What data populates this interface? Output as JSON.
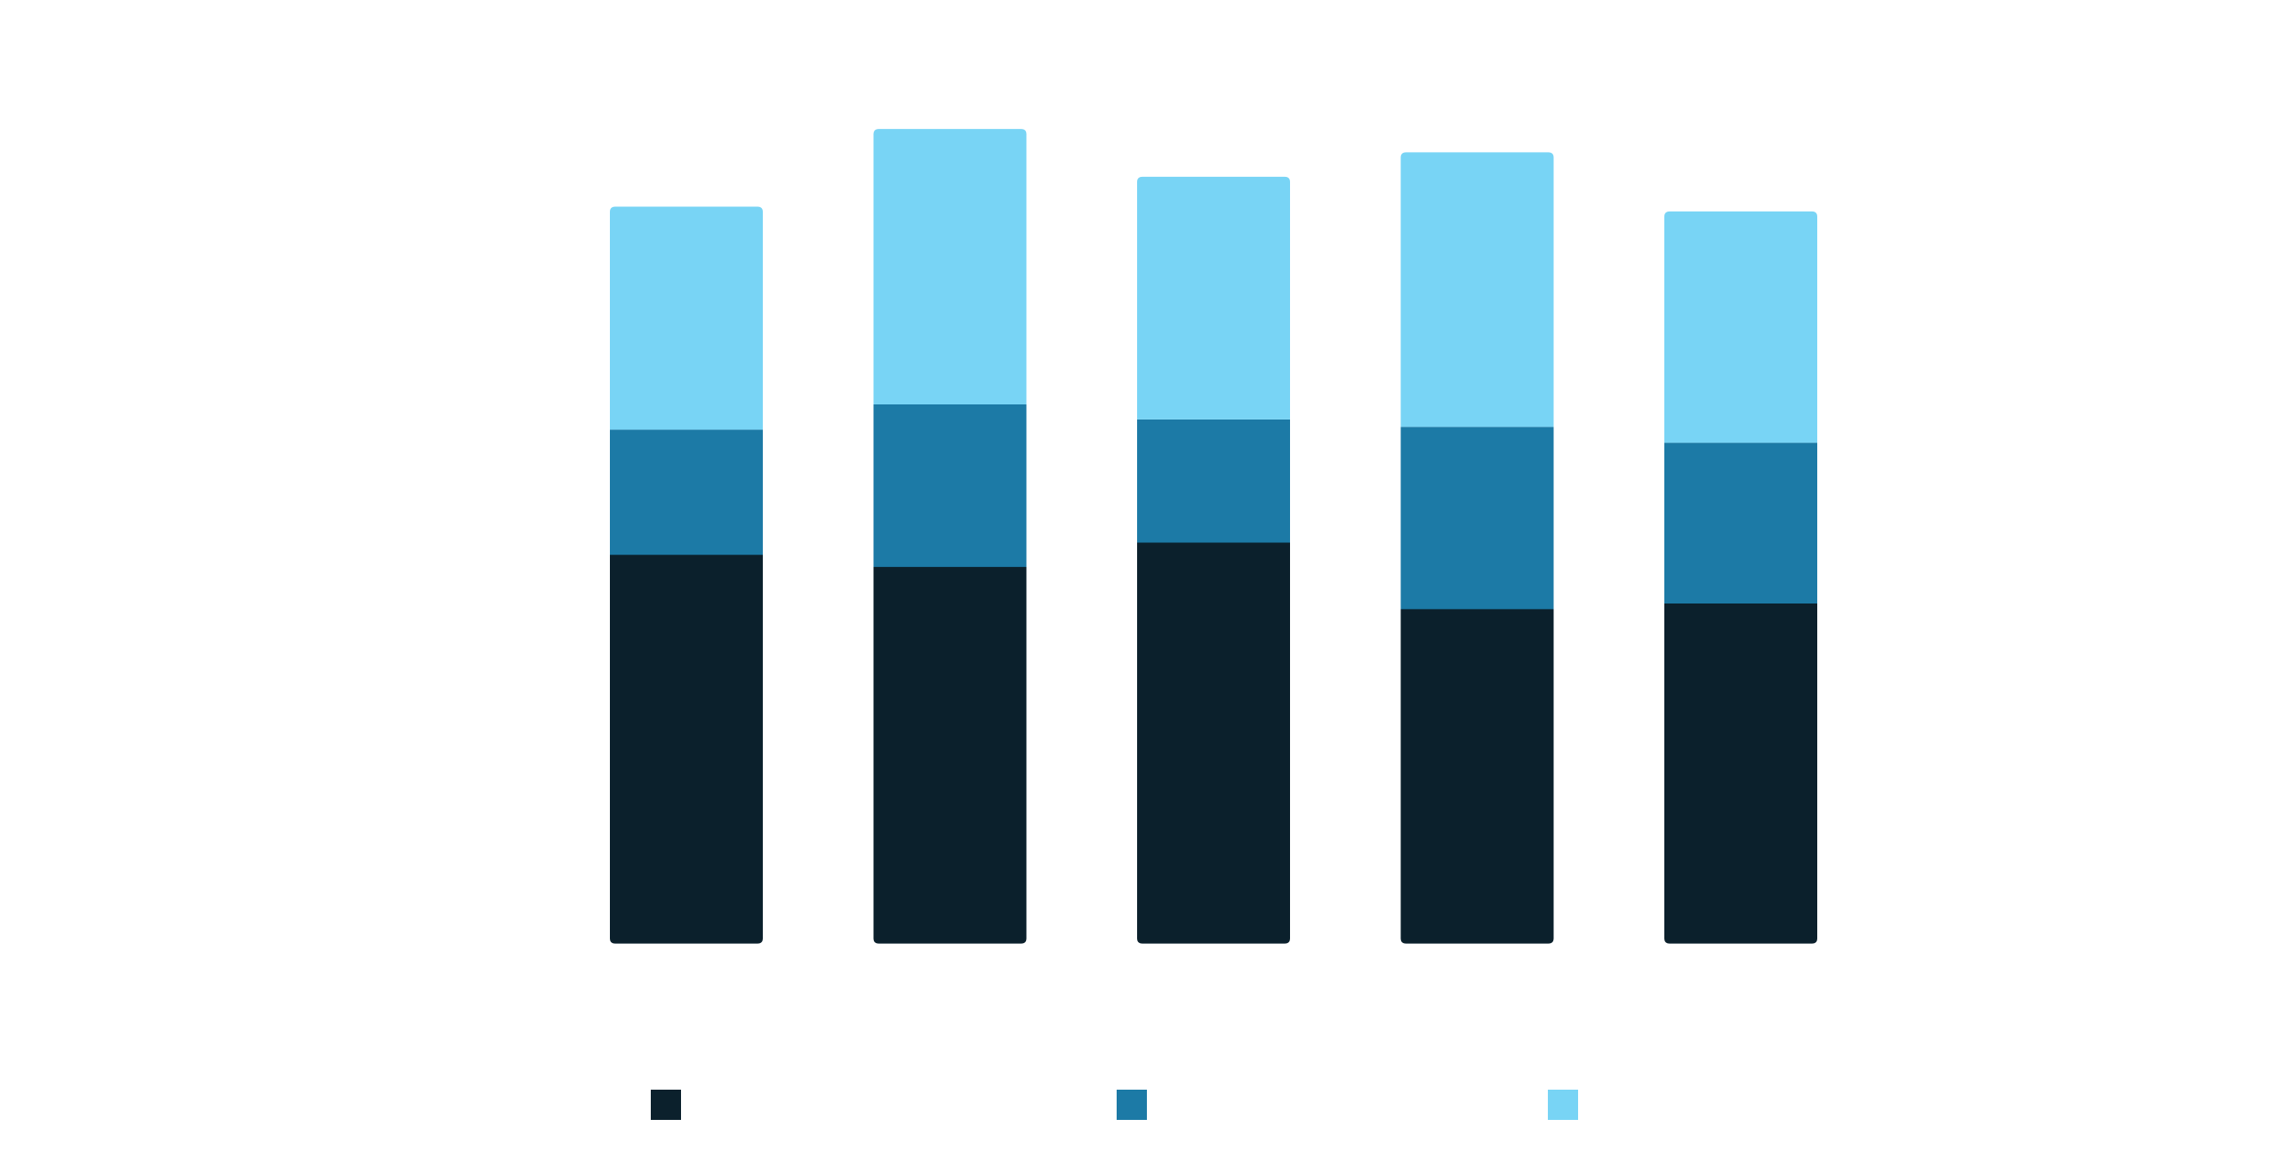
{
  "chart_data": {
    "type": "bar",
    "stacked": true,
    "categories": [
      "",
      "",
      "",
      "",
      ""
    ],
    "series": [
      {
        "name": "",
        "color": "#0b202c",
        "values": [
          4.15,
          4.02,
          4.28,
          3.57,
          3.63
        ]
      },
      {
        "name": "",
        "color": "#1c7aa6",
        "values": [
          1.33,
          1.73,
          1.31,
          1.94,
          1.71
        ]
      },
      {
        "name": "",
        "color": "#78d4f5",
        "values": [
          2.38,
          2.94,
          2.59,
          2.93,
          2.47
        ]
      }
    ],
    "ylim": [
      0,
      10
    ],
    "grid": false,
    "legend": "bottom",
    "title": "",
    "xlabel": "",
    "ylabel": ""
  }
}
